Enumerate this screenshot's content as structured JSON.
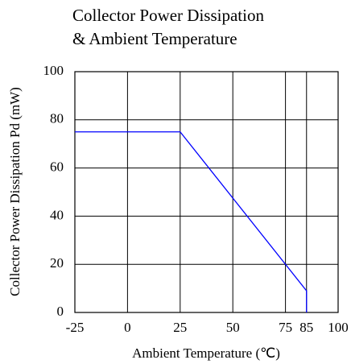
{
  "chart_data": {
    "type": "line",
    "title": [
      "Collector Power Dissipation",
      "& Ambient Temperature"
    ],
    "x_label": "Ambient Temperature (℃)",
    "y_label": "Collector Power Dissipation Pd (mW)",
    "x": [
      -25,
      25,
      85,
      85
    ],
    "series": [
      {
        "color": "#0000ff",
        "values": [
          75,
          75,
          9,
          0
        ]
      }
    ],
    "xlim": [
      -25,
      100
    ],
    "xticks": [
      -25,
      0,
      25,
      50,
      75,
      85,
      100
    ],
    "ylim": [
      0,
      100
    ],
    "yticks": [
      0,
      20,
      40,
      60,
      80,
      100
    ],
    "grid": true
  }
}
